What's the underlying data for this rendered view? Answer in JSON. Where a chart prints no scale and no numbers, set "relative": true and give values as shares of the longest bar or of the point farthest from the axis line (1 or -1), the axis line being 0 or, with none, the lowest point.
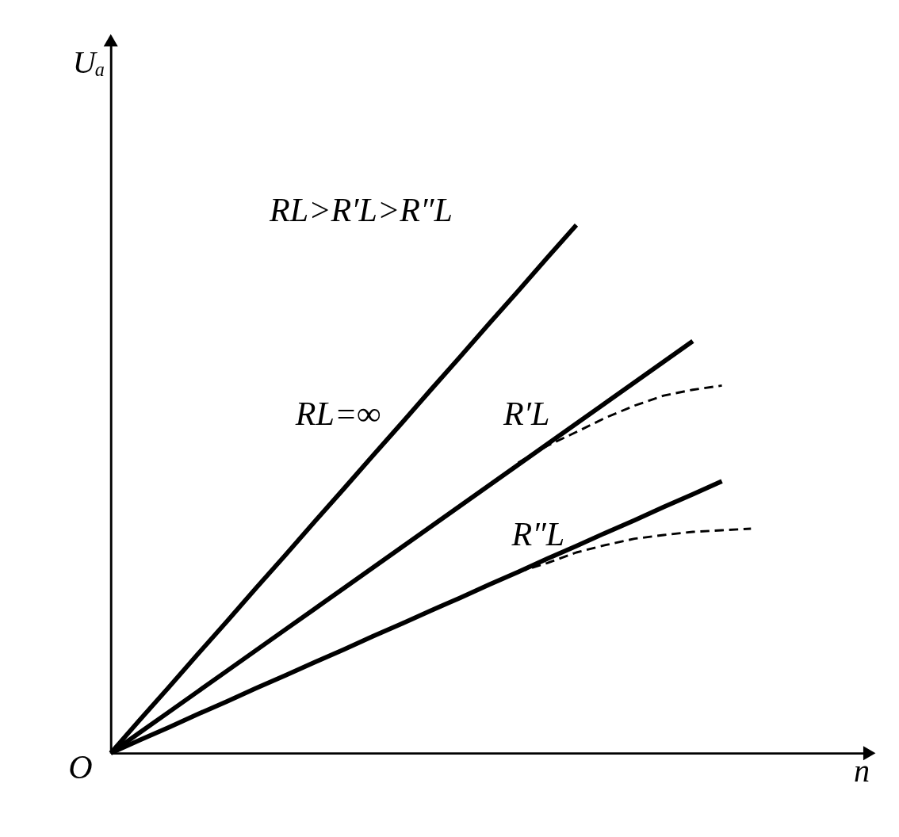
{
  "chart_data": {
    "type": "line",
    "relative": true,
    "xlabel": "n",
    "ylabel": "Uₐ",
    "legend": false,
    "annotations": [
      "RL>R′L>R″L",
      "O"
    ],
    "categories": [
      null,
      null,
      null,
      null,
      null,
      null,
      null,
      null,
      null,
      null,
      null,
      null,
      null,
      null,
      null,
      null,
      null,
      null,
      null,
      null,
      null,
      null,
      null
    ],
    "series": [
      {
        "name": "RL=∞",
        "color": "#000000",
        "line_style": "solid",
        "values": [
          0,
          0.063,
          0.125,
          0.188,
          0.25,
          0.313,
          0.375,
          0.438,
          0.5,
          0.563,
          0.625,
          0.688,
          0.75,
          0.813,
          0.875,
          0.938,
          1,
          null,
          null,
          null,
          null,
          null,
          null
        ]
      },
      {
        "name": "R′L",
        "color": "#000000",
        "line_style": "solid",
        "values": [
          0,
          0.039,
          0.078,
          0.117,
          0.156,
          0.195,
          0.234,
          0.273,
          0.312,
          0.351,
          0.39,
          0.429,
          0.468,
          0.507,
          0.546,
          0.585,
          0.624,
          0.663,
          0.702,
          0.741,
          0.78,
          null,
          null
        ]
      },
      {
        "name": "R″L",
        "color": "#000000",
        "line_style": "solid",
        "values": [
          0,
          0.025,
          0.049,
          0.074,
          0.098,
          0.123,
          0.147,
          0.172,
          0.196,
          0.221,
          0.245,
          0.27,
          0.294,
          0.319,
          0.343,
          0.368,
          0.392,
          0.417,
          0.441,
          0.466,
          0.49,
          0.515,
          null
        ]
      },
      {
        "color": "#000000",
        "line_style": "dashed",
        "values": [
          null,
          null,
          null,
          null,
          null,
          null,
          null,
          null,
          null,
          null,
          null,
          null,
          null,
          null,
          0.55,
          0.582,
          0.608,
          0.635,
          0.658,
          0.677,
          0.688,
          0.696,
          null
        ]
      },
      {
        "color": "#000000",
        "line_style": "dashed",
        "values": [
          null,
          null,
          null,
          null,
          null,
          null,
          null,
          null,
          null,
          null,
          null,
          null,
          null,
          null,
          0.343,
          0.36,
          0.38,
          0.394,
          0.406,
          0.413,
          0.419,
          0.422,
          0.425
        ]
      }
    ]
  }
}
